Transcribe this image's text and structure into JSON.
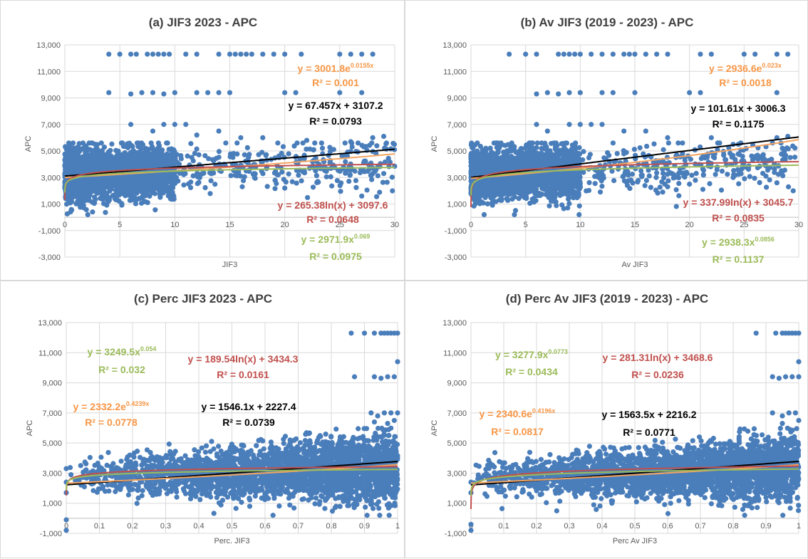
{
  "chart_data": [
    {
      "type": "scatter",
      "title": "(a) JIF3 2023  -  APC",
      "xlabel": "JIF3",
      "ylabel": "APC",
      "xlim": [
        0,
        30
      ],
      "ylim": [
        -3000,
        13000
      ],
      "xticks": [
        "0",
        "5",
        "10",
        "15",
        "20",
        "25",
        "30"
      ],
      "yticks": [
        "-3,000",
        "-1,000",
        "1,000",
        "3,000",
        "5,000",
        "7,000",
        "9,000",
        "11,000",
        "13,000"
      ],
      "grid": true,
      "point_color": "#4a7ebb",
      "cloud": {
        "x_max": 30,
        "x_dense_max": 10,
        "y_center": 3100,
        "y_spread": 1250,
        "n": 2600
      },
      "outliers": [
        [
          4,
          12300
        ],
        [
          5,
          12300
        ],
        [
          6,
          12300
        ],
        [
          6.5,
          12300
        ],
        [
          7.5,
          12300
        ],
        [
          8,
          12300
        ],
        [
          8.5,
          12300
        ],
        [
          9,
          12300
        ],
        [
          9.5,
          12300
        ],
        [
          11,
          12300
        ],
        [
          12,
          12300
        ],
        [
          14,
          12300
        ],
        [
          15,
          12300
        ],
        [
          15.5,
          12300
        ],
        [
          16,
          12300
        ],
        [
          16.5,
          12300
        ],
        [
          17,
          12300
        ],
        [
          18,
          12300
        ],
        [
          19,
          12300
        ],
        [
          20,
          12300
        ],
        [
          21.5,
          12300
        ],
        [
          25,
          12300
        ],
        [
          26,
          12300
        ],
        [
          27,
          12300
        ],
        [
          28,
          12300
        ],
        [
          4,
          9400
        ],
        [
          6,
          9300
        ],
        [
          7,
          9400
        ],
        [
          8,
          9400
        ],
        [
          9,
          9300
        ],
        [
          10,
          9400
        ],
        [
          12,
          9400
        ],
        [
          13,
          9400
        ],
        [
          14,
          9400
        ],
        [
          15,
          9400
        ],
        [
          20,
          9400
        ],
        [
          21,
          9400
        ],
        [
          25,
          9400
        ],
        [
          27,
          9400
        ],
        [
          6,
          7000
        ],
        [
          8,
          6500
        ],
        [
          9,
          7000
        ],
        [
          10,
          7000
        ],
        [
          11,
          7000
        ],
        [
          12,
          6200
        ],
        [
          14,
          6500
        ],
        [
          16,
          6000
        ],
        [
          18,
          6000
        ],
        [
          22,
          5800
        ],
        [
          26,
          5700
        ],
        [
          28,
          6000
        ],
        [
          29,
          6100
        ],
        [
          20,
          2200
        ],
        [
          23,
          2700
        ],
        [
          27,
          1600
        ],
        [
          28,
          3300
        ],
        [
          29,
          3300
        ]
      ],
      "trendlines": [
        {
          "kind": "linear",
          "color": "#000000",
          "a": 67.457,
          "b": 3107.2
        },
        {
          "kind": "exp",
          "color": "#f4a460",
          "a": 3001.8,
          "b": 0.0155
        },
        {
          "kind": "log",
          "color": "#c0504d",
          "a": 265.38,
          "b": 3097.6
        },
        {
          "kind": "power",
          "color": "#9bbb59",
          "a": 2971.9,
          "b": 0.069
        }
      ],
      "equations": [
        {
          "base": "y = 3001.8e",
          "sup": "0.0155x",
          "r2": "R² = 0.001",
          "color": "#f79646"
        },
        {
          "base": "y = 67.457x + 3107.2",
          "sup": "",
          "r2": "R² = 0.0793",
          "color": "#000000"
        },
        {
          "base": "y = 265.38ln(x) + 3097.6",
          "sup": "",
          "r2": "R² = 0.0648",
          "color": "#c0504d"
        },
        {
          "base": "y = 2971.9x",
          "sup": "0.069",
          "r2": "R² = 0.0975",
          "color": "#9bbb59"
        }
      ]
    },
    {
      "type": "scatter",
      "title": "(b) Av JIF3 (2019 - 2023)  -  APC",
      "xlabel": "Av JIF3",
      "ylabel": "APC",
      "xlim": [
        0,
        30
      ],
      "ylim": [
        -3000,
        13000
      ],
      "xticks": [
        "0",
        "5",
        "10",
        "15",
        "20",
        "25",
        "30"
      ],
      "yticks": [
        "-3,000",
        "-1,000",
        "1,000",
        "3,000",
        "5,000",
        "7,000",
        "9,000",
        "11,000",
        "13,000"
      ],
      "grid": true,
      "point_color": "#4a7ebb",
      "cloud": {
        "x_max": 30,
        "x_dense_max": 10,
        "y_center": 3100,
        "y_spread": 1250,
        "n": 2600
      },
      "outliers": [
        [
          3.5,
          12300
        ],
        [
          5,
          12300
        ],
        [
          6,
          12300
        ],
        [
          8,
          12300
        ],
        [
          8.5,
          12300
        ],
        [
          9,
          12300
        ],
        [
          9.5,
          12300
        ],
        [
          10,
          12300
        ],
        [
          11,
          12300
        ],
        [
          12,
          12300
        ],
        [
          13,
          12300
        ],
        [
          14,
          12300
        ],
        [
          14.5,
          12300
        ],
        [
          15,
          12300
        ],
        [
          16,
          12300
        ],
        [
          17,
          12300
        ],
        [
          18,
          12300
        ],
        [
          21,
          12300
        ],
        [
          22,
          12300
        ],
        [
          25,
          12300
        ],
        [
          26,
          12300
        ],
        [
          28,
          12300
        ],
        [
          29,
          12300
        ],
        [
          6,
          9300
        ],
        [
          7,
          9400
        ],
        [
          8,
          9300
        ],
        [
          9,
          9400
        ],
        [
          10,
          9400
        ],
        [
          12,
          9400
        ],
        [
          13,
          9400
        ],
        [
          15,
          9400
        ],
        [
          20,
          9400
        ],
        [
          21,
          9400
        ],
        [
          28,
          9400
        ],
        [
          6,
          7000
        ],
        [
          7,
          6500
        ],
        [
          9,
          7000
        ],
        [
          10,
          7000
        ],
        [
          11,
          7000
        ],
        [
          12,
          7000
        ],
        [
          14,
          6500
        ],
        [
          16,
          6500
        ],
        [
          18,
          6000
        ],
        [
          22,
          6000
        ],
        [
          24,
          5500
        ],
        [
          28,
          6000
        ],
        [
          29,
          6100
        ],
        [
          18,
          2300
        ],
        [
          20,
          2500
        ],
        [
          24,
          3000
        ],
        [
          27,
          3100
        ],
        [
          28,
          2600
        ]
      ],
      "trendlines": [
        {
          "kind": "linear",
          "color": "#000000",
          "a": 101.61,
          "b": 3006.3
        },
        {
          "kind": "exp",
          "color": "#f4a460",
          "a": 2936.6,
          "b": 0.023
        },
        {
          "kind": "log",
          "color": "#c0504d",
          "a": 337.99,
          "b": 3045.7
        },
        {
          "kind": "power",
          "color": "#9bbb59",
          "a": 2938.3,
          "b": 0.0856
        }
      ],
      "equations": [
        {
          "base": "y = 2936.6e",
          "sup": "0.023x",
          "r2": "R² = 0.0018",
          "color": "#f79646"
        },
        {
          "base": "y = 101.61x + 3006.3",
          "sup": "",
          "r2": "R² = 0.1175",
          "color": "#000000"
        },
        {
          "base": "y = 337.99ln(x) + 3045.7",
          "sup": "",
          "r2": "R² = 0.0835",
          "color": "#c0504d"
        },
        {
          "base": "y = 2938.3x",
          "sup": "0.0856",
          "r2": "R² = 0.1137",
          "color": "#9bbb59"
        }
      ]
    },
    {
      "type": "scatter",
      "title": "(c) Perc JIF3 2023  -  APC",
      "xlabel": "Perc. JIF3",
      "ylabel": "APC",
      "xlim": [
        0,
        1
      ],
      "ylim": [
        -1000,
        13000
      ],
      "xticks": [
        "0",
        "0.1",
        "0.2",
        "0.3",
        "0.4",
        "0.5",
        "0.6",
        "0.7",
        "0.8",
        "0.9",
        "1"
      ],
      "yticks": [
        "-1,000",
        "1,000",
        "3,000",
        "5,000",
        "7,000",
        "9,000",
        "11,000",
        "13,000"
      ],
      "grid": true,
      "point_color": "#4a7ebb",
      "cloud": {
        "x_max": 1,
        "y_center": 3000,
        "y_spread": 1200,
        "n": 3000
      },
      "outliers": [
        [
          0.86,
          12300
        ],
        [
          0.9,
          12300
        ],
        [
          0.93,
          12300
        ],
        [
          0.95,
          12300
        ],
        [
          0.96,
          12300
        ],
        [
          0.97,
          12300
        ],
        [
          0.98,
          12300
        ],
        [
          0.99,
          12300
        ],
        [
          1,
          12300
        ],
        [
          0.87,
          9400
        ],
        [
          0.93,
          9400
        ],
        [
          0.95,
          9300
        ],
        [
          0.97,
          9400
        ],
        [
          0.99,
          9400
        ],
        [
          1,
          10400
        ],
        [
          0.92,
          7000
        ],
        [
          0.94,
          6800
        ],
        [
          0.96,
          7000
        ],
        [
          0.98,
          7000
        ],
        [
          1,
          7000
        ],
        [
          0.93,
          6400
        ],
        [
          0.97,
          6300
        ],
        [
          0.99,
          6500
        ],
        [
          0.0,
          3300
        ],
        [
          0.0,
          2400
        ],
        [
          0.0,
          1700
        ],
        [
          0.0,
          -100
        ],
        [
          0.0,
          -800
        ]
      ],
      "trendlines": [
        {
          "kind": "linear",
          "color": "#000000",
          "a": 1546.1,
          "b": 2227.4
        },
        {
          "kind": "exp",
          "color": "#f4a460",
          "a": 2332.2,
          "b": 0.4239
        },
        {
          "kind": "log",
          "color": "#c0504d",
          "a": 189.54,
          "b": 3434.3
        },
        {
          "kind": "power",
          "color": "#9bbb59",
          "a": 3249.5,
          "b": 0.054
        }
      ],
      "equations": [
        {
          "base": "y = 3249.5x",
          "sup": "0.054",
          "r2": "R² = 0.032",
          "color": "#9bbb59"
        },
        {
          "base": "y = 189.54ln(x) + 3434.3",
          "sup": "",
          "r2": "R² = 0.0161",
          "color": "#c0504d"
        },
        {
          "base": "y = 2332.2e",
          "sup": "0.4239x",
          "r2": "R² = 0.0778",
          "color": "#f79646"
        },
        {
          "base": "y = 1546.1x + 2227.4",
          "sup": "",
          "r2": "R² = 0.0739",
          "color": "#000000"
        }
      ]
    },
    {
      "type": "scatter",
      "title": "(d) Perc Av JIF3 (2019 - 2023)  -  APC",
      "xlabel": "Perc Av JIF3",
      "ylabel": "APC",
      "xlim": [
        0,
        1
      ],
      "ylim": [
        -1000,
        13000
      ],
      "xticks": [
        "0",
        "0.1",
        "0.2",
        "0.3",
        "0.4",
        "0.5",
        "0.6",
        "0.7",
        "0.8",
        "0.9",
        "1"
      ],
      "yticks": [
        "-1,000",
        "1,000",
        "3,000",
        "5,000",
        "7,000",
        "9,000",
        "11,000",
        "13,000"
      ],
      "grid": true,
      "point_color": "#4a7ebb",
      "cloud": {
        "x_max": 1,
        "y_center": 3000,
        "y_spread": 1200,
        "n": 3000
      },
      "outliers": [
        [
          0.87,
          12300
        ],
        [
          0.93,
          12300
        ],
        [
          0.95,
          12300
        ],
        [
          0.96,
          12300
        ],
        [
          0.97,
          12300
        ],
        [
          0.98,
          12300
        ],
        [
          0.99,
          12300
        ],
        [
          1,
          12300
        ],
        [
          0.92,
          9400
        ],
        [
          0.94,
          9300
        ],
        [
          0.96,
          9400
        ],
        [
          0.98,
          9400
        ],
        [
          1,
          9400
        ],
        [
          1,
          10400
        ],
        [
          0.92,
          7000
        ],
        [
          0.95,
          6800
        ],
        [
          0.97,
          7000
        ],
        [
          0.99,
          7000
        ],
        [
          1,
          6500
        ],
        [
          0.95,
          6300
        ],
        [
          0.0,
          2400
        ],
        [
          0.0,
          1700
        ],
        [
          0.0,
          -400
        ],
        [
          0.0,
          -800
        ]
      ],
      "trendlines": [
        {
          "kind": "linear",
          "color": "#000000",
          "a": 1563.5,
          "b": 2216.2
        },
        {
          "kind": "exp",
          "color": "#f4a460",
          "a": 2340.6,
          "b": 0.4196
        },
        {
          "kind": "log",
          "color": "#c0504d",
          "a": 281.31,
          "b": 3468.6
        },
        {
          "kind": "power",
          "color": "#9bbb59",
          "a": 3277.9,
          "b": 0.0773
        }
      ],
      "equations": [
        {
          "base": "y = 3277.9x",
          "sup": "0.0773",
          "r2": "R² = 0.0434",
          "color": "#9bbb59"
        },
        {
          "base": "y = 281.31ln(x) + 3468.6",
          "sup": "",
          "r2": "R² = 0.0236",
          "color": "#c0504d"
        },
        {
          "base": "y = 2340.6e",
          "sup": "0.4196x",
          "r2": "R² = 0.0817",
          "color": "#f79646"
        },
        {
          "base": "y = 1563.5x + 2216.2",
          "sup": "",
          "r2": "R² = 0.0771",
          "color": "#000000"
        }
      ]
    }
  ]
}
